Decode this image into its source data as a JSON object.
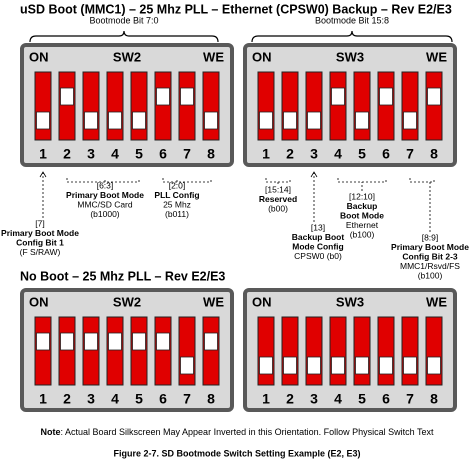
{
  "sections": [
    {
      "title": "uSD Boot (MMC1) – 25 Mhz PLL – Ethernet (CPSW0) Backup – Rev E2/E3",
      "braces": [
        "Bootmode Bit 7:0",
        "Bootmode Bit 15:8"
      ],
      "panels": [
        {
          "on": "ON",
          "name": "SW2",
          "we": "WE",
          "switch_labels": [
            "1",
            "2",
            "3",
            "4",
            "5",
            "6",
            "7",
            "8"
          ]
        },
        {
          "on": "ON",
          "name": "SW3",
          "we": "WE",
          "switch_labels": [
            "1",
            "2",
            "3",
            "4",
            "5",
            "6",
            "7",
            "8"
          ]
        }
      ],
      "annotations": [
        {
          "lines": [
            "[7]",
            "Primary Boot Mode",
            "Config Bit 1",
            "(F S/RAW)"
          ]
        },
        {
          "lines": [
            "[6:3]",
            "Primary Boot Mode",
            "MMC/SD Card",
            "(b1000)"
          ]
        },
        {
          "lines": [
            "[2:0]",
            "PLL Config",
            "25 Mhz",
            "(b011)"
          ]
        },
        {
          "lines": [
            "[15:14]",
            "Reserved",
            "(b00)"
          ]
        },
        {
          "lines": [
            "[13]",
            "Backup Boot",
            "Mode Config",
            "CPSW0 (b0)"
          ]
        },
        {
          "lines": [
            "[12:10]",
            "Backup",
            "Boot Mode",
            "Ethernet",
            "(b100)"
          ]
        },
        {
          "lines": [
            "[8:9]",
            "Primary Boot Mode",
            "Config Bit 2-3",
            "MMC1/Rsvd/FS",
            "(b100)"
          ]
        }
      ]
    },
    {
      "title": "No Boot – 25 Mhz PLL – Rev E2/E3",
      "panels": [
        {
          "on": "ON",
          "name": "SW2",
          "we": "WE",
          "switch_labels": [
            "1",
            "2",
            "3",
            "4",
            "5",
            "6",
            "7",
            "8"
          ]
        },
        {
          "on": "ON",
          "name": "SW3",
          "we": "WE",
          "switch_labels": [
            "1",
            "2",
            "3",
            "4",
            "5",
            "6",
            "7",
            "8"
          ]
        }
      ]
    }
  ],
  "note": {
    "label": "Note",
    "text": ": Actual Board Silkscreen May Appear Inverted in this Orientation. Follow Physical Switch Text"
  },
  "caption": "Figure 2-7. SD Bootmode Switch Setting Example (E2, E3)"
}
